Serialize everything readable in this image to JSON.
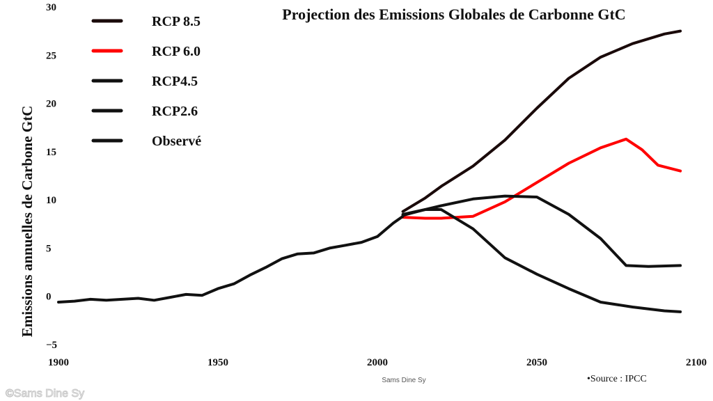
{
  "chart_data": {
    "type": "line",
    "title": "Projection des Emissions Globales de Carbonne GtC",
    "ylabel": "Emissions annuelles de Carbone GtC",
    "xlabel": "",
    "xlim": [
      1900,
      2100
    ],
    "ylim": [
      -5,
      30
    ],
    "x_ticks": [
      "1900",
      "1950",
      "2000",
      "2050",
      "2100"
    ],
    "y_ticks": [
      "−5",
      "0",
      "5",
      "10",
      "15",
      "20",
      "25",
      "30"
    ],
    "legend_position": "top-left",
    "series": [
      {
        "name": "RCP 8.5",
        "color": "#1a0a0a",
        "points": [
          [
            2008,
            8.8
          ],
          [
            2015,
            10.2
          ],
          [
            2020,
            11.4
          ],
          [
            2030,
            13.5
          ],
          [
            2040,
            16.2
          ],
          [
            2050,
            19.5
          ],
          [
            2060,
            22.6
          ],
          [
            2070,
            24.8
          ],
          [
            2080,
            26.2
          ],
          [
            2090,
            27.2
          ],
          [
            2095,
            27.5
          ]
        ]
      },
      {
        "name": "RCP 6.0",
        "color": "#ff0000",
        "points": [
          [
            2008,
            8.2
          ],
          [
            2015,
            8.1
          ],
          [
            2020,
            8.1
          ],
          [
            2030,
            8.3
          ],
          [
            2040,
            9.8
          ],
          [
            2050,
            11.8
          ],
          [
            2060,
            13.8
          ],
          [
            2070,
            15.4
          ],
          [
            2078,
            16.3
          ],
          [
            2083,
            15.2
          ],
          [
            2088,
            13.6
          ],
          [
            2095,
            13.0
          ]
        ]
      },
      {
        "name": "RCP4.5",
        "color": "#111111",
        "points": [
          [
            2008,
            8.5
          ],
          [
            2015,
            9.0
          ],
          [
            2020,
            9.4
          ],
          [
            2030,
            10.1
          ],
          [
            2040,
            10.4
          ],
          [
            2050,
            10.3
          ],
          [
            2060,
            8.5
          ],
          [
            2070,
            6.0
          ],
          [
            2078,
            3.2
          ],
          [
            2085,
            3.1
          ],
          [
            2095,
            3.2
          ]
        ]
      },
      {
        "name": "RCP2.6",
        "color": "#111111",
        "points": [
          [
            2008,
            8.4
          ],
          [
            2015,
            9.0
          ],
          [
            2020,
            9.0
          ],
          [
            2030,
            7.0
          ],
          [
            2040,
            4.0
          ],
          [
            2050,
            2.3
          ],
          [
            2060,
            0.8
          ],
          [
            2070,
            -0.6
          ],
          [
            2080,
            -1.1
          ],
          [
            2090,
            -1.5
          ],
          [
            2095,
            -1.6
          ]
        ]
      },
      {
        "name": "Observé",
        "color": "#111111",
        "points": [
          [
            1900,
            -0.6
          ],
          [
            1905,
            -0.5
          ],
          [
            1910,
            -0.3
          ],
          [
            1915,
            -0.4
          ],
          [
            1920,
            -0.3
          ],
          [
            1925,
            -0.2
          ],
          [
            1930,
            -0.4
          ],
          [
            1935,
            -0.1
          ],
          [
            1940,
            0.2
          ],
          [
            1945,
            0.1
          ],
          [
            1950,
            0.8
          ],
          [
            1955,
            1.3
          ],
          [
            1960,
            2.2
          ],
          [
            1965,
            3.0
          ],
          [
            1970,
            3.9
          ],
          [
            1975,
            4.4
          ],
          [
            1980,
            4.5
          ],
          [
            1985,
            5.0
          ],
          [
            1990,
            5.3
          ],
          [
            1995,
            5.6
          ],
          [
            2000,
            6.2
          ],
          [
            2005,
            7.6
          ],
          [
            2008,
            8.3
          ]
        ]
      }
    ]
  },
  "credit": "Sams Dine Sy",
  "source": "•Source : IPCC",
  "watermark": "©Sams Dine Sy"
}
